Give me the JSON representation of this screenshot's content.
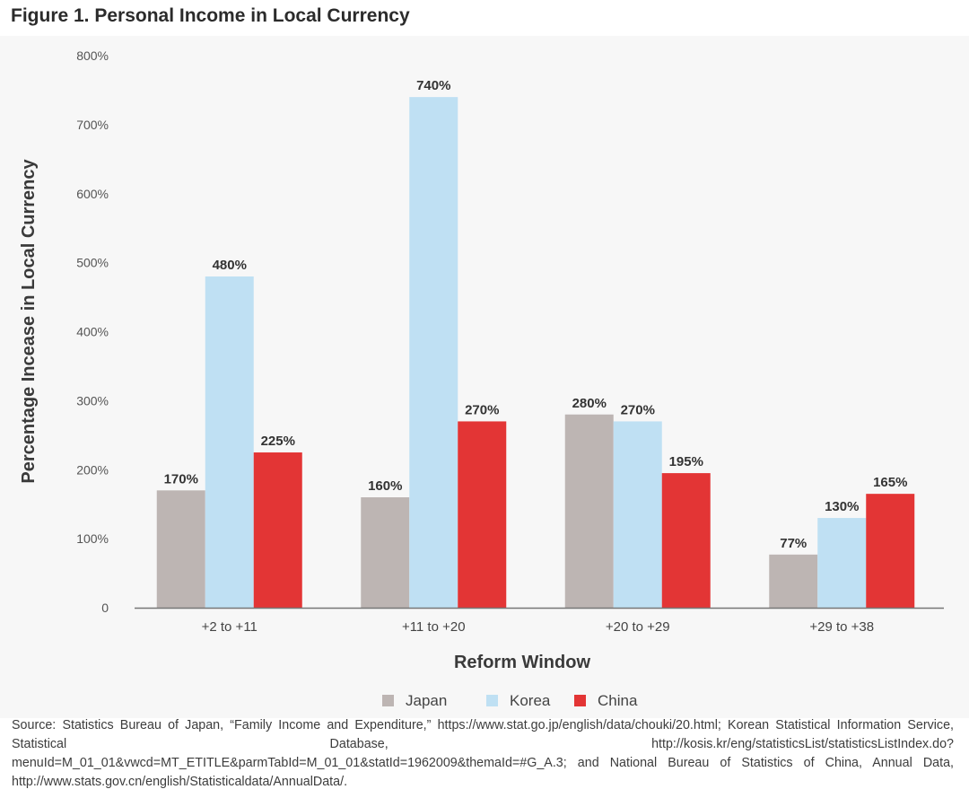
{
  "figure_title": "Figure 1. Personal Income in Local Currency",
  "source_note": "Source: Statistics Bureau of Japan, “Family Income and Expenditure,” https://www.stat.go.jp/english/data/chouki/20.html; Korean Statistical Information Service, Statistical Database, http://kosis.kr/eng/statisticsList/statisticsListIndex.do?menuId=M_01_01&vwcd=MT_ETITLE&parmTabId=M_01_01&statId=1962009&themaId=#G_A.3; and National Bureau of Statistics of China, Annual Data, http://www.stats.gov.cn/english/Statisticaldata/AnnualData/.",
  "chart_data": {
    "type": "bar",
    "title": "",
    "xlabel": "Reform Window",
    "ylabel": "Percentage Incease in Local Currency",
    "categories": [
      "+2 to +11",
      "+11 to +20",
      "+20 to +29",
      "+29 to +38"
    ],
    "ylim": [
      0,
      800
    ],
    "yticks": [
      0,
      100,
      200,
      300,
      400,
      500,
      600,
      700,
      800
    ],
    "ytick_labels": [
      "0",
      "100%",
      "200%",
      "300%",
      "400%",
      "500%",
      "600%",
      "700%",
      "800%"
    ],
    "grid": false,
    "legend_position": "bottom",
    "series": [
      {
        "name": "Japan",
        "color": "#bdb5b3",
        "values": [
          170,
          160,
          280,
          77
        ],
        "labels": [
          "170%",
          "160%",
          "280%",
          "77%"
        ]
      },
      {
        "name": "Korea",
        "color": "#bfe0f3",
        "values": [
          480,
          740,
          270,
          130
        ],
        "labels": [
          "480%",
          "740%",
          "270%",
          "130%"
        ]
      },
      {
        "name": "China",
        "color": "#e33535",
        "values": [
          225,
          270,
          195,
          165
        ],
        "labels": [
          "225%",
          "270%",
          "195%",
          "165%"
        ]
      }
    ]
  }
}
